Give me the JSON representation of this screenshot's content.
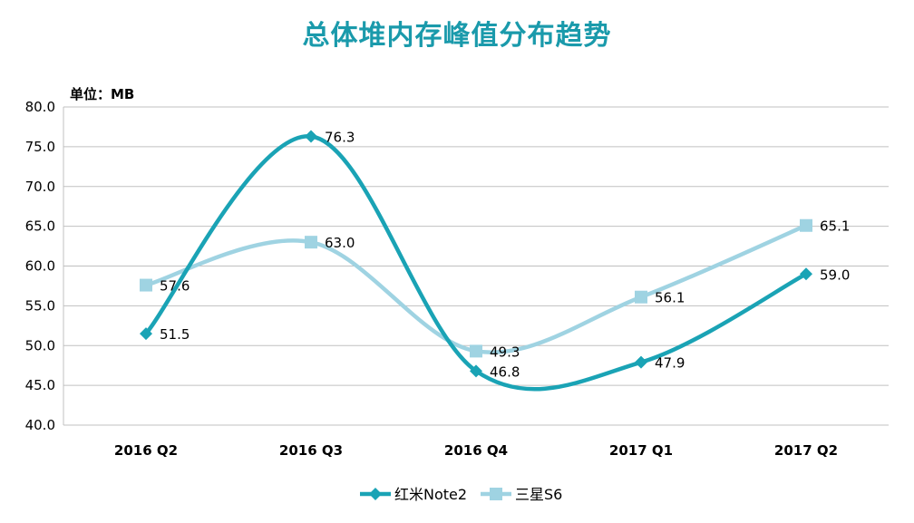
{
  "chart_data": {
    "type": "line",
    "title": "总体堆内存峰值分布趋势",
    "unit_label": "单位：MB",
    "categories": [
      "2016 Q2",
      "2016 Q3",
      "2016 Q4",
      "2017 Q1",
      "2017 Q2"
    ],
    "ylim": [
      40.0,
      80.0
    ],
    "yticks": [
      "40.0",
      "45.0",
      "50.0",
      "55.0",
      "60.0",
      "65.0",
      "70.0",
      "75.0",
      "80.0"
    ],
    "grid": true,
    "smooth": true,
    "legend_position": "bottom",
    "series": [
      {
        "name": "红米Note2",
        "values": [
          51.5,
          76.3,
          46.8,
          47.9,
          59.0
        ],
        "labels": [
          "51.5",
          "76.3",
          "46.8",
          "47.9",
          "59.0"
        ],
        "color": "#1aa3b5",
        "marker": "diamond"
      },
      {
        "name": "三星S6",
        "values": [
          57.6,
          63.0,
          49.3,
          56.1,
          65.1
        ],
        "labels": [
          "57.6",
          "63.0",
          "49.3",
          "56.1",
          "65.1"
        ],
        "color": "#9fd3e2",
        "marker": "square"
      }
    ]
  },
  "colors": {
    "title": "#1a9aab",
    "grid": "#c0c0c0"
  }
}
